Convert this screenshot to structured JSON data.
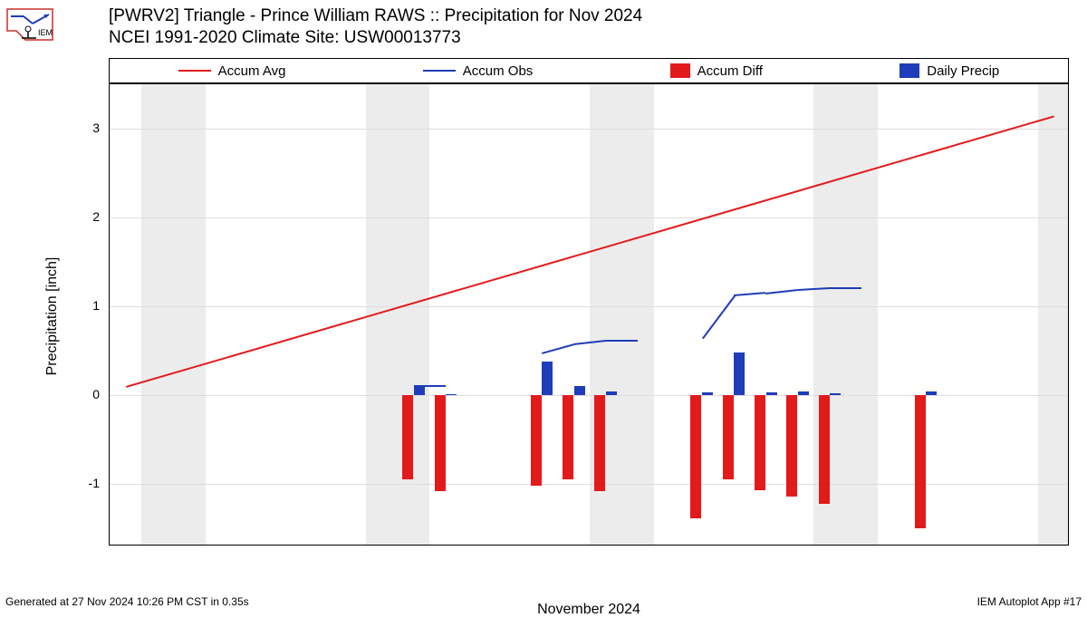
{
  "logo": {
    "text": "IEM",
    "stroke": "#c9302c"
  },
  "title": {
    "line1": "[PWRV2] Triangle - Prince William RAWS :: Precipitation for Nov 2024",
    "line2": "NCEI 1991-2020 Climate Site: USW00013773"
  },
  "legend": {
    "items": [
      {
        "label": "Accum Avg",
        "type": "line",
        "color": "#e31a1c"
      },
      {
        "label": "Accum Obs",
        "type": "line",
        "color": "#1f3db8"
      },
      {
        "label": "Accum Diff",
        "type": "box",
        "color": "#e31a1c"
      },
      {
        "label": "Daily Precip",
        "type": "box",
        "color": "#1f3db8"
      }
    ]
  },
  "chart": {
    "xmin": 0.5,
    "xmax": 30.5,
    "ymin": -1.7,
    "ymax": 3.5,
    "yticks": [
      -1,
      0,
      1,
      2,
      3
    ],
    "xticks": [
      1,
      2,
      3,
      4,
      5,
      6,
      7,
      8,
      9,
      10,
      11,
      12,
      13,
      14,
      15,
      16,
      17,
      18,
      19,
      20,
      21,
      22,
      23,
      24,
      25,
      26,
      27,
      28,
      29,
      30
    ],
    "ylabel": "Precipitation [inch]",
    "xlabel": "November 2024",
    "grid_color": "#dddddd",
    "weekend_color": "#ececec",
    "weekends": [
      [
        1.5,
        3.5
      ],
      [
        8.5,
        10.5
      ],
      [
        15.5,
        17.5
      ],
      [
        22.5,
        24.5
      ],
      [
        29.5,
        30.5
      ]
    ],
    "accum_avg": {
      "color": "#e31a1c",
      "points": [
        [
          1,
          0.105
        ],
        [
          30,
          3.15
        ]
      ]
    },
    "accum_obs": {
      "color": "#1f3db8",
      "segments": [
        [
          [
            10,
            0.12
          ],
          [
            11,
            0.12
          ]
        ],
        [
          [
            14,
            0.48
          ],
          [
            15,
            0.58
          ],
          [
            16,
            0.62
          ],
          [
            17,
            0.62
          ]
        ],
        [
          [
            19,
            0.65
          ],
          [
            20,
            1.13
          ],
          [
            21,
            1.16
          ],
          [
            22,
            1.2
          ],
          [
            23,
            1.22
          ],
          [
            24,
            1.22
          ]
        ]
      ]
    },
    "accum_diff_bars": {
      "color": "#e31a1c",
      "width": 0.4,
      "data": [
        {
          "x": 10,
          "y": -0.95
        },
        {
          "x": 11,
          "y": -1.08
        },
        {
          "x": 14,
          "y": -1.02
        },
        {
          "x": 15,
          "y": -0.95
        },
        {
          "x": 16,
          "y": -1.08
        },
        {
          "x": 19,
          "y": -1.38
        },
        {
          "x": 20,
          "y": -0.95
        },
        {
          "x": 21,
          "y": -1.07
        },
        {
          "x": 22,
          "y": -1.14
        },
        {
          "x": 23,
          "y": -1.22
        },
        {
          "x": 26,
          "y": -1.5
        }
      ]
    },
    "daily_precip_bars": {
      "color": "#1f3db8",
      "width": 0.4,
      "data": [
        {
          "x": 10,
          "y": 0.12
        },
        {
          "x": 11,
          "y": 0.01
        },
        {
          "x": 14,
          "y": 0.38
        },
        {
          "x": 15,
          "y": 0.1
        },
        {
          "x": 16,
          "y": 0.04
        },
        {
          "x": 19,
          "y": 0.03
        },
        {
          "x": 20,
          "y": 0.48
        },
        {
          "x": 21,
          "y": 0.03
        },
        {
          "x": 22,
          "y": 0.04
        },
        {
          "x": 23,
          "y": 0.02
        },
        {
          "x": 26,
          "y": 0.04
        }
      ]
    }
  },
  "footer": {
    "left": "Generated at 27 Nov 2024 10:26 PM CST in 0.35s",
    "right": "IEM Autoplot App #17"
  }
}
